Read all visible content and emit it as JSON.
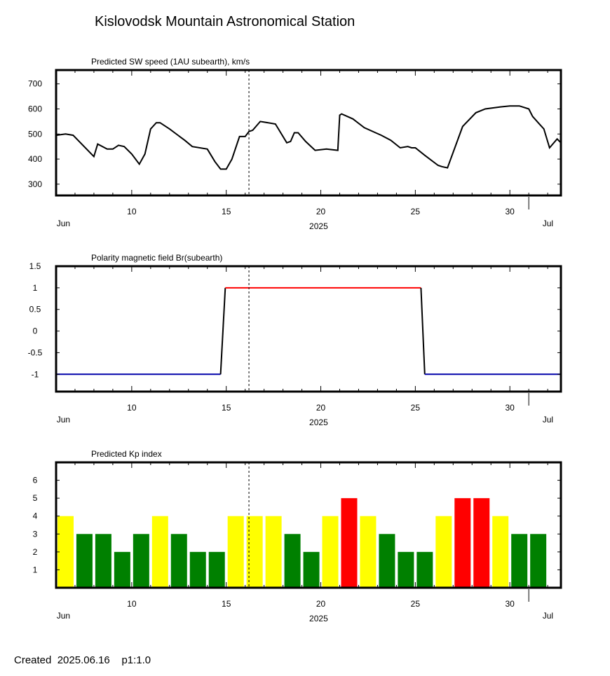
{
  "page": {
    "title": "Kislovodsk Mountain Astronomical Station",
    "footer_created": "Created  2025.06.16    p1:1.0"
  },
  "colors": {
    "sw_line": "#000000",
    "polarity_positive": "#ff0000",
    "polarity_negative": "#0000aa",
    "polarity_transition": "#000000",
    "kp_quiet": "#008000",
    "kp_unsettled": "#ffff00",
    "kp_storm": "#ff0000",
    "current_day_marker": "#000000"
  },
  "chart_data": [
    {
      "type": "line",
      "title": "Predicted SW speed (1AU subearth), km/s",
      "xlabel": "2025",
      "x_unit": "day (June 2025; 31 = Jul 1)",
      "xlim": [
        6,
        32.7
      ],
      "ylim": [
        255,
        755
      ],
      "yticks": [
        300,
        400,
        500,
        600,
        700
      ],
      "xticks": [
        10,
        15,
        20,
        25,
        30
      ],
      "month_labels": [
        {
          "day": 6.1,
          "label": "Jun"
        },
        {
          "day": 31.8,
          "label": "Jul"
        }
      ],
      "current_day": 16.2,
      "series": [
        {
          "x": [
            6.0,
            6.5,
            6.9,
            8.0,
            8.2,
            8.7,
            9.0,
            9.3,
            9.6,
            10.0,
            10.4,
            10.7,
            11.0,
            11.3,
            11.5,
            12.0,
            12.8,
            13.2,
            14.0,
            14.4,
            14.7,
            15.0,
            15.3,
            15.7,
            16.0,
            16.2,
            16.4,
            16.8,
            17.6,
            18.2,
            18.4,
            18.6,
            18.8,
            19.2,
            19.7,
            20.3,
            20.9,
            21.0,
            21.1,
            21.7,
            22.3,
            22.9,
            23.2,
            23.7,
            24.2,
            24.6,
            24.8,
            25.0,
            25.5,
            26.2,
            26.4,
            26.7,
            27.5,
            28.2,
            28.7,
            29.5,
            30.0,
            30.5,
            31.0,
            31.2,
            31.5,
            31.8,
            32.1,
            32.5,
            32.7
          ],
          "y": [
            495,
            500,
            495,
            410,
            460,
            440,
            440,
            455,
            450,
            420,
            380,
            420,
            520,
            545,
            545,
            520,
            475,
            450,
            440,
            390,
            360,
            360,
            400,
            490,
            490,
            510,
            515,
            550,
            540,
            465,
            470,
            505,
            505,
            470,
            435,
            440,
            435,
            575,
            580,
            560,
            525,
            505,
            495,
            475,
            445,
            450,
            445,
            445,
            415,
            375,
            370,
            365,
            530,
            585,
            600,
            608,
            612,
            612,
            600,
            570,
            545,
            520,
            445,
            480,
            465
          ]
        }
      ]
    },
    {
      "type": "line",
      "title": "Polarity magnetic field  Br(subearth)",
      "xlabel": "2025",
      "x_unit": "day (June 2025; 31 = Jul 1)",
      "xlim": [
        6,
        32.7
      ],
      "ylim": [
        -1.4,
        1.5
      ],
      "yticks": [
        -1,
        -0.5,
        0,
        0.5,
        1,
        1.5
      ],
      "xticks": [
        10,
        15,
        20,
        25,
        30
      ],
      "month_labels": [
        {
          "day": 6.1,
          "label": "Jun"
        },
        {
          "day": 31.8,
          "label": "Jul"
        }
      ],
      "current_day": 16.2,
      "series": [
        {
          "x": [
            6.0,
            14.7
          ],
          "y": [
            -1,
            -1
          ],
          "color_key": "polarity_negative"
        },
        {
          "x": [
            14.7,
            14.95
          ],
          "y": [
            -1,
            1
          ],
          "color_key": "polarity_transition"
        },
        {
          "x": [
            14.95,
            25.3
          ],
          "y": [
            1,
            1
          ],
          "color_key": "polarity_positive"
        },
        {
          "x": [
            25.3,
            25.5
          ],
          "y": [
            1,
            -1
          ],
          "color_key": "polarity_transition"
        },
        {
          "x": [
            25.5,
            32.7
          ],
          "y": [
            -1,
            -1
          ],
          "color_key": "polarity_negative"
        }
      ]
    },
    {
      "type": "bar",
      "title": "Predicted Kp index",
      "xlabel": "2025",
      "x_unit": "day (June 2025; 31 = Jul 1)",
      "xlim": [
        6,
        32.7
      ],
      "ylim": [
        0,
        7
      ],
      "yticks": [
        1,
        2,
        3,
        4,
        5,
        6
      ],
      "xticks": [
        10,
        15,
        20,
        25,
        30
      ],
      "month_labels": [
        {
          "day": 6.1,
          "label": "Jun"
        },
        {
          "day": 31.8,
          "label": "Jul"
        }
      ],
      "current_day": 16.2,
      "categories": [
        6,
        7,
        8,
        9,
        10,
        11,
        12,
        13,
        14,
        15,
        16,
        17,
        18,
        19,
        20,
        21,
        22,
        23,
        24,
        25,
        26,
        27,
        28,
        29,
        30,
        31
      ],
      "values": [
        4,
        3,
        3,
        2,
        3,
        4,
        3,
        2,
        2,
        4,
        4,
        4,
        3,
        2,
        4,
        5,
        4,
        3,
        2,
        2,
        4,
        5,
        5,
        4,
        3,
        3
      ],
      "level_colors": {
        "2": "kp_quiet",
        "3": "kp_quiet",
        "4": "kp_unsettled",
        "5": "kp_storm"
      }
    }
  ]
}
